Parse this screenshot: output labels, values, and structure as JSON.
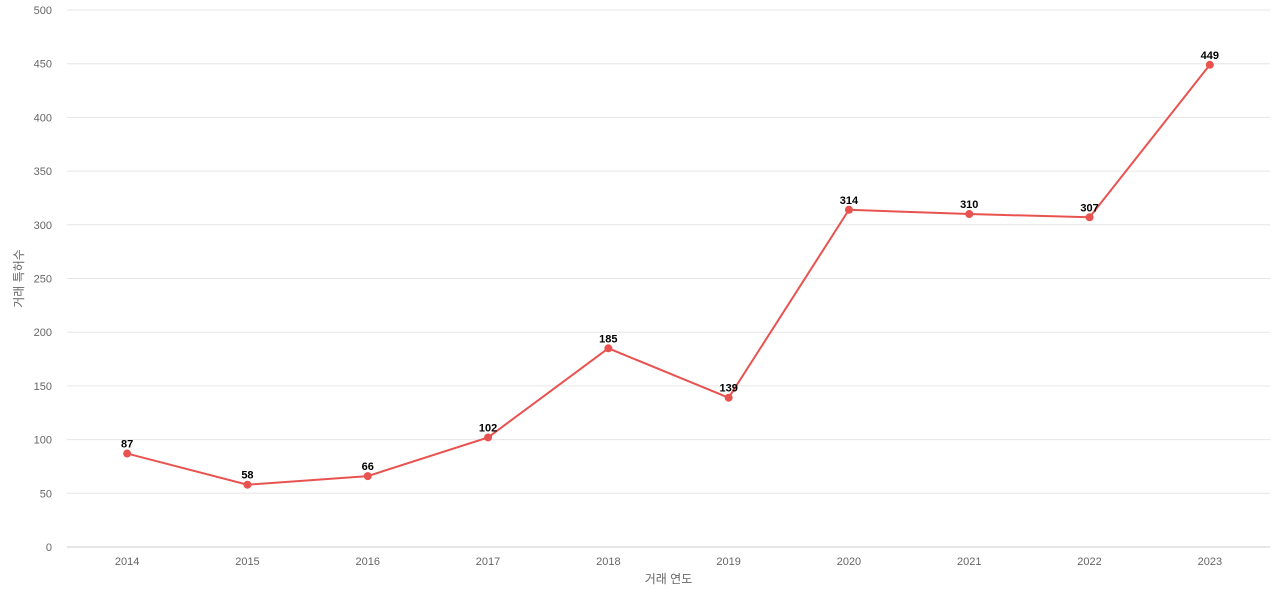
{
  "chart_data": {
    "type": "line",
    "categories": [
      "2014",
      "2015",
      "2016",
      "2017",
      "2018",
      "2019",
      "2020",
      "2021",
      "2022",
      "2023"
    ],
    "series": [
      {
        "values": [
          87,
          58,
          66,
          102,
          185,
          139,
          314,
          310,
          307,
          449
        ],
        "color": "#e8534f"
      }
    ],
    "xlabel": "거래 연도",
    "ylabel": "거래 특허수",
    "ylim": [
      0,
      500
    ],
    "yticks": [
      0,
      50,
      100,
      150,
      200,
      250,
      300,
      350,
      400,
      450,
      500
    ],
    "grid": true,
    "data_labels": true,
    "legend": "none"
  }
}
